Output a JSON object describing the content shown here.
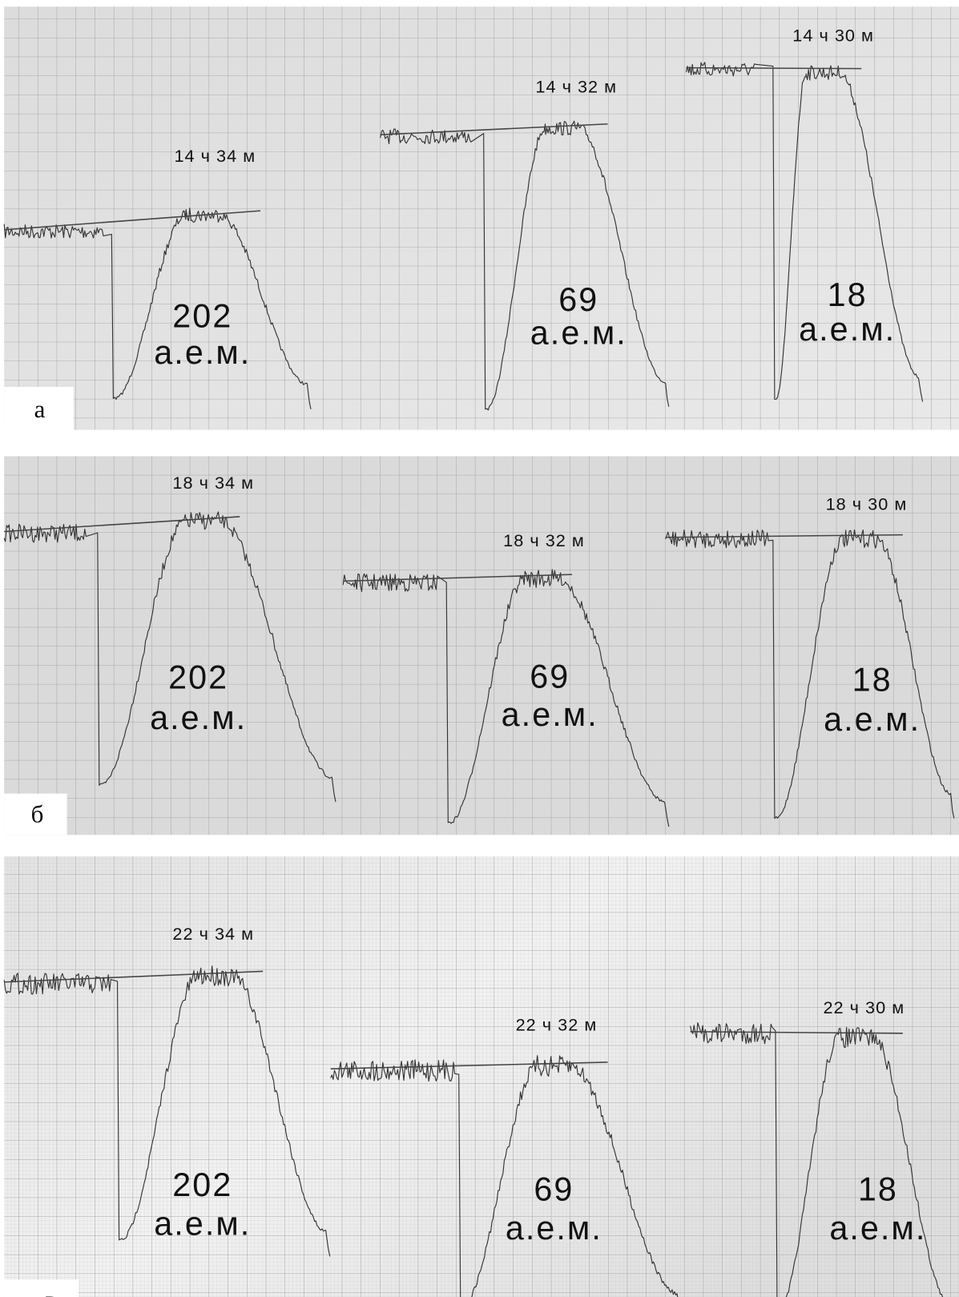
{
  "panels": [
    {
      "label": "а",
      "peaks": [
        {
          "time": "14 ч 34 м",
          "mass": 202,
          "unit": "а.е.м."
        },
        {
          "time": "14 ч 32 м",
          "mass": 69,
          "unit": "а.е.м."
        },
        {
          "time": "14 ч 30 м",
          "mass": 18,
          "unit": "а.е.м."
        }
      ]
    },
    {
      "label": "б",
      "peaks": [
        {
          "time": "18 ч 34 м",
          "mass": 202,
          "unit": "а.е.м."
        },
        {
          "time": "18 ч 32 м",
          "mass": 69,
          "unit": "а.е.м."
        },
        {
          "time": "18 ч 30 м",
          "mass": 18,
          "unit": "а.е.м."
        }
      ]
    },
    {
      "label": "в",
      "peaks": [
        {
          "time": "22 ч 34 м",
          "mass": 202,
          "unit": "а.е.м."
        },
        {
          "time": "22 ч 32 м",
          "mass": 69,
          "unit": "а.е.м."
        },
        {
          "time": "22 ч 30 м",
          "mass": 18,
          "unit": "а.е.м."
        }
      ]
    }
  ]
}
